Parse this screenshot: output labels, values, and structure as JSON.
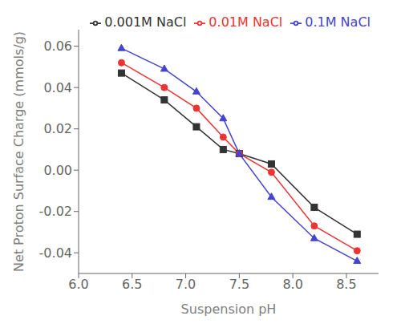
{
  "chart_data": {
    "type": "line",
    "xlabel": "Suspension pH",
    "ylabel": "Net Proton Surface Charge (mmols/g)",
    "x": [
      6.4,
      6.8,
      7.1,
      7.35,
      7.5,
      7.8,
      8.2,
      8.6
    ],
    "series": [
      {
        "name": "0.001M NaCl",
        "color": "#333333",
        "marker": "square",
        "values": [
          0.047,
          0.034,
          0.021,
          0.01,
          0.008,
          0.003,
          -0.018,
          -0.031
        ]
      },
      {
        "name": "0.01M NaCl",
        "color": "#ee3333",
        "marker": "circle",
        "values": [
          0.052,
          0.04,
          0.03,
          0.016,
          0.008,
          -0.001,
          -0.027,
          -0.039
        ]
      },
      {
        "name": "0.1M NaCl",
        "color": "#4444cc",
        "marker": "triangle",
        "values": [
          0.059,
          0.049,
          0.038,
          0.025,
          0.008,
          -0.013,
          -0.033,
          -0.044
        ]
      }
    ],
    "xlim": [
      6.0,
      8.8
    ],
    "ylim": [
      -0.05,
      0.068
    ],
    "xticks": [
      {
        "value": 6.0,
        "label": "6.0"
      },
      6.5,
      {
        "value": 7.0,
        "label": "7.0"
      },
      7.5,
      {
        "value": 8.0,
        "label": "8.0"
      },
      8.5
    ],
    "yticks": [
      -0.04,
      -0.02,
      {
        "value": 0,
        "label": "0.00"
      },
      0.02,
      0.04,
      0.06
    ],
    "grid": false,
    "legend": "upper right"
  }
}
